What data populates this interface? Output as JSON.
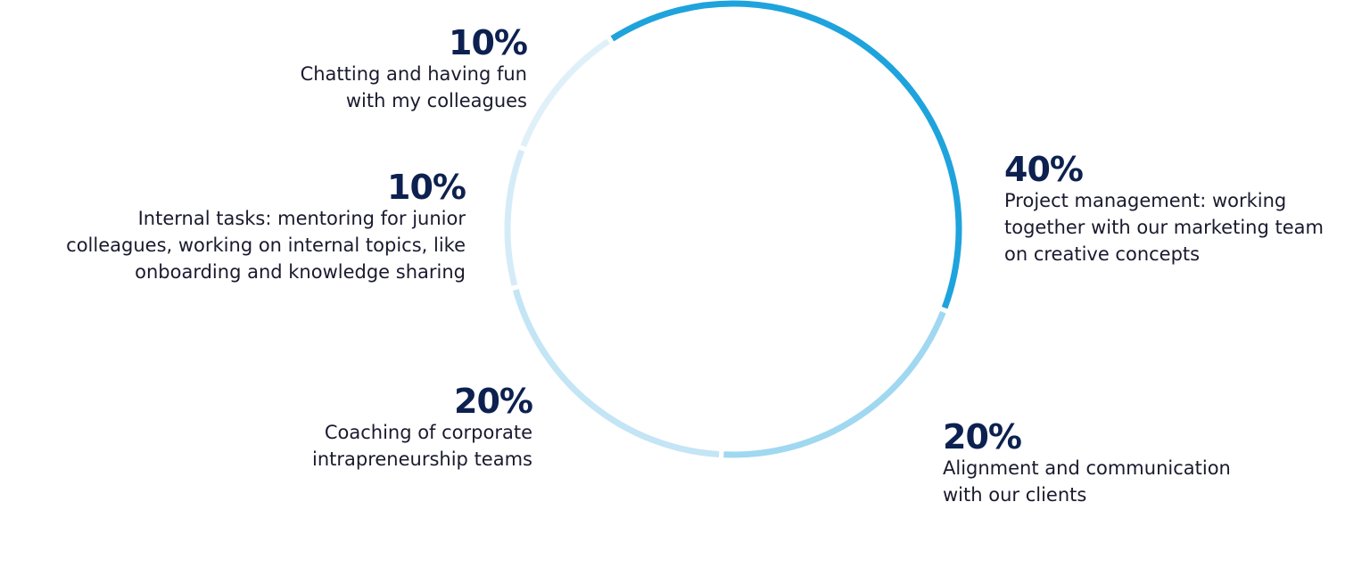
{
  "chart_data": {
    "type": "donut",
    "categories": [
      "Project management: working\ntogether with our marketing team\non creative concepts",
      "Alignment and communication\nwith our clients",
      "Coaching of corporate\nintrapreneurship teams",
      "Internal tasks: mentoring for junior\ncolleagues, working on internal topics, like\nonboarding and knowledge sharing",
      "Chatting and having fun\nwith my colleagues"
    ],
    "values": [
      40,
      20,
      20,
      10,
      10
    ],
    "value_labels": [
      "40%",
      "20%",
      "20%",
      "10%",
      "10%"
    ],
    "colors": [
      "#1fa3dc",
      "#9fd8f0",
      "#c3e5f5",
      "#d5ecf8",
      "#e0f0f9"
    ]
  }
}
